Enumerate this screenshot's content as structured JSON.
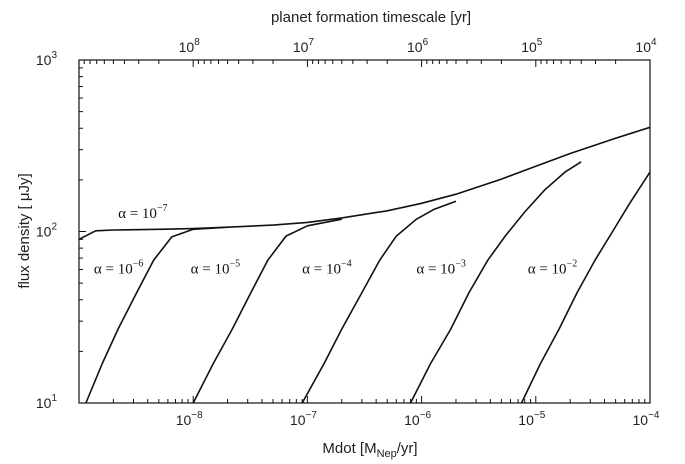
{
  "chart_data": {
    "type": "line",
    "xlabel_bottom_main": "Mdot [M",
    "xlabel_bottom_sub": "Nep",
    "xlabel_bottom_tail": "/yr]",
    "xlabel_top": "planet formation timescale [yr]",
    "ylabel": "flux density [ μJy]",
    "x_scale": "log",
    "y_scale": "log",
    "xlim": [
      1e-09,
      0.0001
    ],
    "ylim": [
      10,
      1000
    ],
    "top_xlim": [
      1000000000.0,
      10000.0
    ],
    "bottom_ticks": [
      {
        "value": 1e-08,
        "base": "10",
        "exp": "−8"
      },
      {
        "value": 1e-07,
        "base": "10",
        "exp": "−7"
      },
      {
        "value": 1e-06,
        "base": "10",
        "exp": "−6"
      },
      {
        "value": 1e-05,
        "base": "10",
        "exp": "−5"
      },
      {
        "value": 0.0001,
        "base": "10",
        "exp": "−4"
      }
    ],
    "top_ticks": [
      {
        "value": 100000000.0,
        "base": "10",
        "exp": "8"
      },
      {
        "value": 10000000.0,
        "base": "10",
        "exp": "7"
      },
      {
        "value": 1000000.0,
        "base": "10",
        "exp": "6"
      },
      {
        "value": 100000.0,
        "base": "10",
        "exp": "5"
      },
      {
        "value": 10000.0,
        "base": "10",
        "exp": "4"
      }
    ],
    "left_ticks": [
      {
        "value": 10,
        "base": "10",
        "exp": "1"
      },
      {
        "value": 100,
        "base": "10",
        "exp": "2"
      },
      {
        "value": 1000,
        "base": "10",
        "exp": "3"
      }
    ],
    "grid": false,
    "legend": "none",
    "series": [
      {
        "label_base": "α = 10",
        "label_exp": "−7",
        "label_x": 2.2e-09,
        "label_y": 120,
        "points": [
          [
            1e-09,
            90
          ],
          [
            1.4e-09,
            101
          ],
          [
            2e-09,
            102
          ],
          [
            5e-09,
            103
          ],
          [
            1e-08,
            104
          ],
          [
            2e-08,
            106
          ],
          [
            5e-08,
            109
          ],
          [
            1e-07,
            113
          ],
          [
            2e-07,
            120
          ],
          [
            5e-07,
            132
          ],
          [
            1e-06,
            146
          ],
          [
            2e-06,
            165
          ],
          [
            5e-06,
            202
          ],
          [
            1e-05,
            240
          ],
          [
            2e-05,
            285
          ],
          [
            5e-05,
            350
          ],
          [
            0.0001,
            405
          ]
        ]
      },
      {
        "label_base": "α = 10",
        "label_exp": "−6",
        "label_x": 1.35e-09,
        "label_y": 57,
        "points": [
          [
            1.15e-09,
            10
          ],
          [
            1.6e-09,
            17
          ],
          [
            2.2e-09,
            27
          ],
          [
            3.2e-09,
            44
          ],
          [
            4.5e-09,
            68
          ],
          [
            6.5e-09,
            93
          ],
          [
            1e-08,
            103
          ],
          [
            2e-08,
            106
          ]
        ]
      },
      {
        "label_base": "α = 10",
        "label_exp": "−5",
        "label_x": 9.5e-09,
        "label_y": 57,
        "points": [
          [
            1e-08,
            10
          ],
          [
            1.5e-08,
            17
          ],
          [
            2.2e-08,
            27
          ],
          [
            3.2e-08,
            44
          ],
          [
            4.5e-08,
            68
          ],
          [
            6.5e-08,
            94
          ],
          [
            1e-07,
            108
          ],
          [
            2e-07,
            118
          ]
        ]
      },
      {
        "label_base": "α = 10",
        "label_exp": "−4",
        "label_x": 9e-08,
        "label_y": 57,
        "points": [
          [
            9e-08,
            10
          ],
          [
            1.4e-07,
            17
          ],
          [
            2e-07,
            27
          ],
          [
            3e-07,
            44
          ],
          [
            4.3e-07,
            68
          ],
          [
            6e-07,
            94
          ],
          [
            9e-07,
            118
          ],
          [
            1.3e-06,
            135
          ],
          [
            2e-06,
            150
          ]
        ]
      },
      {
        "label_base": "α = 10",
        "label_exp": "−3",
        "label_x": 9e-07,
        "label_y": 57,
        "points": [
          [
            8e-07,
            10
          ],
          [
            1.2e-06,
            17
          ],
          [
            1.8e-06,
            27
          ],
          [
            2.6e-06,
            44
          ],
          [
            3.8e-06,
            68
          ],
          [
            5.4e-06,
            94
          ],
          [
            8e-06,
            130
          ],
          [
            1.2e-05,
            175
          ],
          [
            1.8e-05,
            222
          ],
          [
            2.5e-05,
            255
          ]
        ]
      },
      {
        "label_base": "α = 10",
        "label_exp": "−2",
        "label_x": 8.5e-06,
        "label_y": 57,
        "points": [
          [
            7.5e-06,
            10
          ],
          [
            1.1e-05,
            17
          ],
          [
            1.6e-05,
            27
          ],
          [
            2.3e-05,
            44
          ],
          [
            3.3e-05,
            68
          ],
          [
            4.7e-05,
            100
          ],
          [
            6.6e-05,
            145
          ],
          [
            0.0001,
            222
          ]
        ]
      }
    ]
  }
}
